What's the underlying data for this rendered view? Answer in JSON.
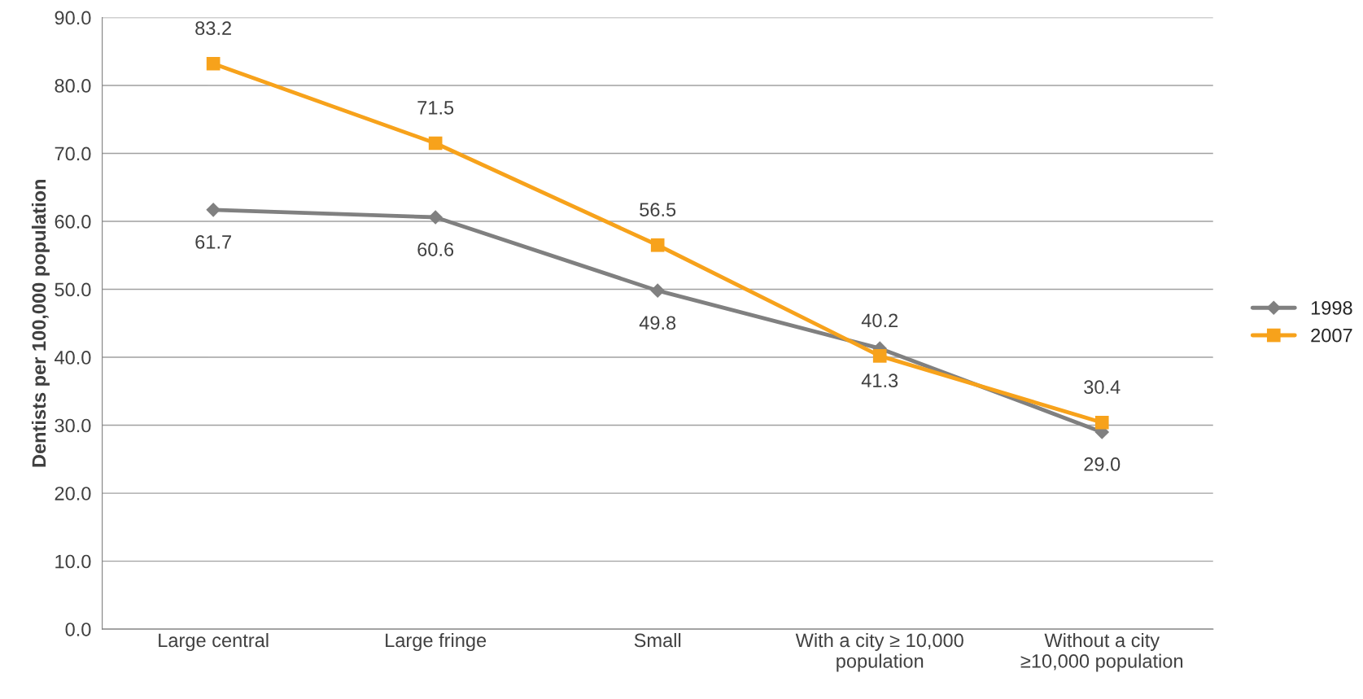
{
  "chart_data": {
    "type": "line",
    "ylabel": "Dentists per 100,000 population",
    "categories": [
      "Large central",
      "Large fringe",
      "Small",
      "With a city ≥ 10,000\npopulation",
      "Without a city\n≥10,000 population"
    ],
    "series": [
      {
        "name": "1998",
        "color": "#808080",
        "marker": "diamond",
        "values": [
          61.7,
          60.6,
          49.8,
          41.3,
          29.0
        ],
        "value_labels": [
          "61.7",
          "60.6",
          "49.8",
          "41.3",
          "29.0"
        ]
      },
      {
        "name": "2007",
        "color": "#f7a21b",
        "marker": "square",
        "values": [
          83.2,
          71.5,
          56.5,
          40.2,
          30.4
        ],
        "value_labels": [
          "83.2",
          "71.5",
          "56.5",
          "40.2",
          "30.4"
        ]
      }
    ],
    "ylim": [
      0,
      90
    ],
    "yticks": [
      {
        "value": 0,
        "label": "0.0"
      },
      {
        "value": 10,
        "label": "10.0"
      },
      {
        "value": 20,
        "label": "20.0"
      },
      {
        "value": 30,
        "label": "30.0"
      },
      {
        "value": 40,
        "label": "40.0"
      },
      {
        "value": 50,
        "label": "50.0"
      },
      {
        "value": 60,
        "label": "60.0"
      },
      {
        "value": 70,
        "label": "70.0"
      },
      {
        "value": 80,
        "label": "80.0"
      },
      {
        "value": 90,
        "label": "90.0"
      }
    ],
    "grid": "y",
    "legend": "right"
  }
}
